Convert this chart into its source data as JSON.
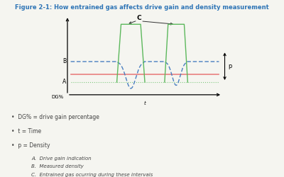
{
  "title": "Figure 2-1: How entrained gas affects drive gain and density measurement",
  "title_color": "#2e75b6",
  "title_fontsize": 6.0,
  "background_color": "#f5f5f0",
  "bullet_items": [
    "DG% = drive gain percentage",
    "t = Time",
    "p = Density"
  ],
  "sub_items": [
    "A.  Drive gain indication",
    "B.  Measured density",
    "C.  Entrained gas ocurring during these intervals"
  ],
  "xlabel": "t",
  "ylabel": "DG%",
  "p_label": "p",
  "A_label": "A",
  "B_label": "B",
  "C_label": "C",
  "green_color": "#5cb85c",
  "blue_color": "#4a7fc1",
  "red_color": "#e88080",
  "green_dot_color": "#7dc87d",
  "text_color": "#444444",
  "arrow_color": "#333333"
}
